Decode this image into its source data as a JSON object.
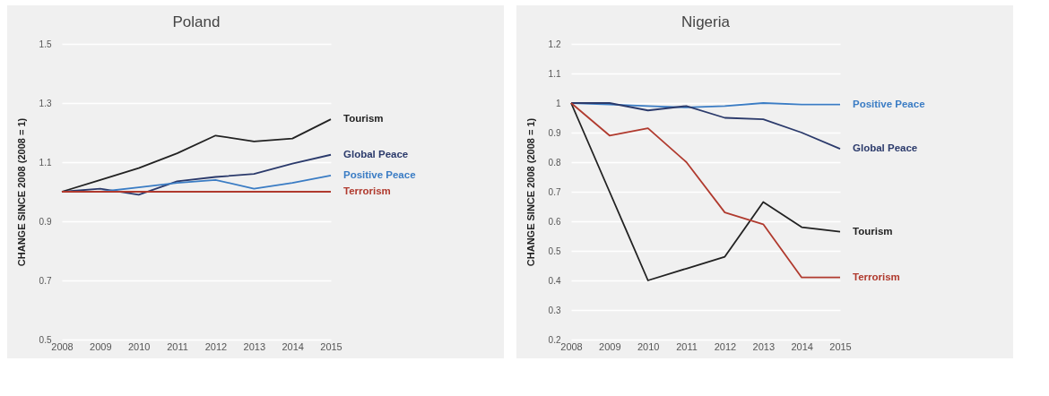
{
  "chart_data": [
    {
      "type": "line",
      "title": "Poland",
      "ylabel": "CHANGE SINCE 2008 (2008 = 1)",
      "categories": [
        "2008",
        "2009",
        "2010",
        "2011",
        "2012",
        "2013",
        "2014",
        "2015"
      ],
      "ylim": [
        0.5,
        1.5
      ],
      "yticks": [
        0.5,
        0.7,
        0.9,
        1.1,
        1.3,
        1.5
      ],
      "grid": "y",
      "legend": false,
      "series": [
        {
          "name": "Tourism",
          "color": "#222222",
          "values": [
            1.0,
            1.04,
            1.08,
            1.13,
            1.19,
            1.17,
            1.18,
            1.245
          ]
        },
        {
          "name": "Global Peace",
          "color": "#2b3a6b",
          "values": [
            1.0,
            1.01,
            0.99,
            1.035,
            1.05,
            1.06,
            1.095,
            1.125
          ]
        },
        {
          "name": "Positive Peace",
          "color": "#3a7cc4",
          "values": [
            1.0,
            1.0,
            1.015,
            1.03,
            1.04,
            1.01,
            1.03,
            1.055
          ]
        },
        {
          "name": "Terrorism",
          "color": "#b03a2e",
          "values": [
            1.0,
            1.0,
            1.0,
            1.0,
            1.0,
            1.0,
            1.0,
            1.0
          ]
        }
      ]
    },
    {
      "type": "line",
      "title": "Nigeria",
      "ylabel": "CHANGE SINCE 2008 (2008 = 1)",
      "categories": [
        "2008",
        "2009",
        "2010",
        "2011",
        "2012",
        "2013",
        "2014",
        "2015"
      ],
      "ylim": [
        0.2,
        1.2
      ],
      "yticks": [
        0.2,
        0.3,
        0.4,
        0.5,
        0.6,
        0.7,
        0.8,
        0.9,
        1,
        1.1,
        1.2
      ],
      "grid": "y",
      "legend": false,
      "series": [
        {
          "name": "Positive Peace",
          "color": "#3a7cc4",
          "values": [
            1.0,
            0.995,
            0.99,
            0.985,
            0.99,
            1.0,
            0.995,
            0.995
          ]
        },
        {
          "name": "Global Peace",
          "color": "#2b3a6b",
          "values": [
            1.0,
            1.0,
            0.975,
            0.99,
            0.95,
            0.945,
            0.9,
            0.845
          ]
        },
        {
          "name": "Tourism",
          "color": "#222222",
          "values": [
            1.0,
            0.7,
            0.4,
            0.44,
            0.48,
            0.665,
            0.58,
            0.565
          ]
        },
        {
          "name": "Terrorism",
          "color": "#b03a2e",
          "values": [
            1.0,
            0.89,
            0.915,
            0.8,
            0.63,
            0.59,
            0.41,
            0.41
          ]
        }
      ]
    }
  ]
}
